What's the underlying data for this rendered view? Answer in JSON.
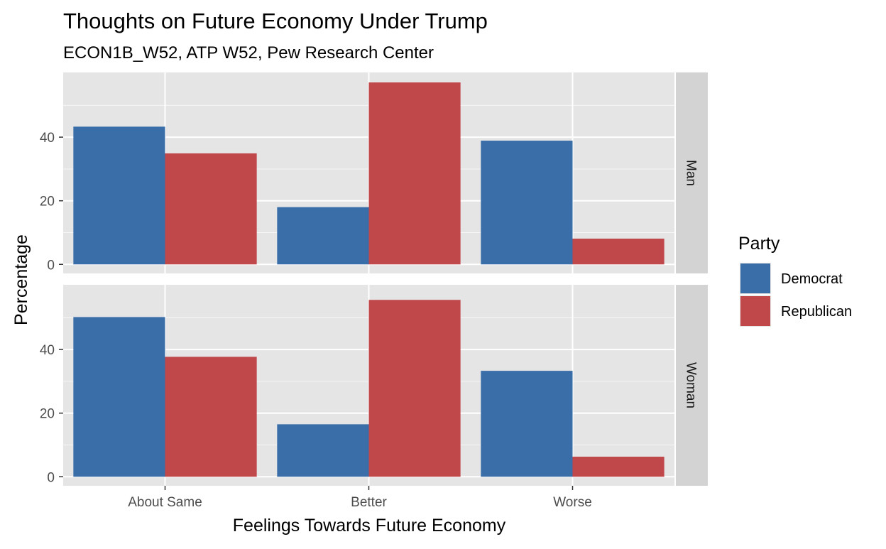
{
  "colors": {
    "democrat": "#3A6EA8",
    "republican": "#C0474A",
    "panel_bg": "#E5E5E5",
    "grid": "#FFFFFF",
    "strip_bg": "#D3D3D3"
  },
  "chart_data": {
    "type": "bar",
    "title": "Thoughts on Future Economy Under Trump",
    "subtitle": "ECON1B_W52, ATP W52, Pew Research Center",
    "xlabel": "Feelings Towards Future Economy",
    "ylabel": "Percentage",
    "categories": [
      "About Same",
      "Better",
      "Worse"
    ],
    "ylim": [
      0,
      57.5
    ],
    "yticks": [
      0,
      20,
      40
    ],
    "grid": true,
    "legend": {
      "title": "Party",
      "placement": "right",
      "entries": [
        "Democrat",
        "Republican"
      ]
    },
    "facets": [
      {
        "label": "Man",
        "series": [
          {
            "name": "Democrat",
            "values": [
              43.3,
              18.0,
              38.9
            ]
          },
          {
            "name": "Republican",
            "values": [
              34.9,
              57.2,
              8.1
            ]
          }
        ]
      },
      {
        "label": "Woman",
        "series": [
          {
            "name": "Democrat",
            "values": [
              50.2,
              16.5,
              33.3
            ]
          },
          {
            "name": "Republican",
            "values": [
              37.7,
              55.6,
              6.3
            ]
          }
        ]
      }
    ]
  }
}
